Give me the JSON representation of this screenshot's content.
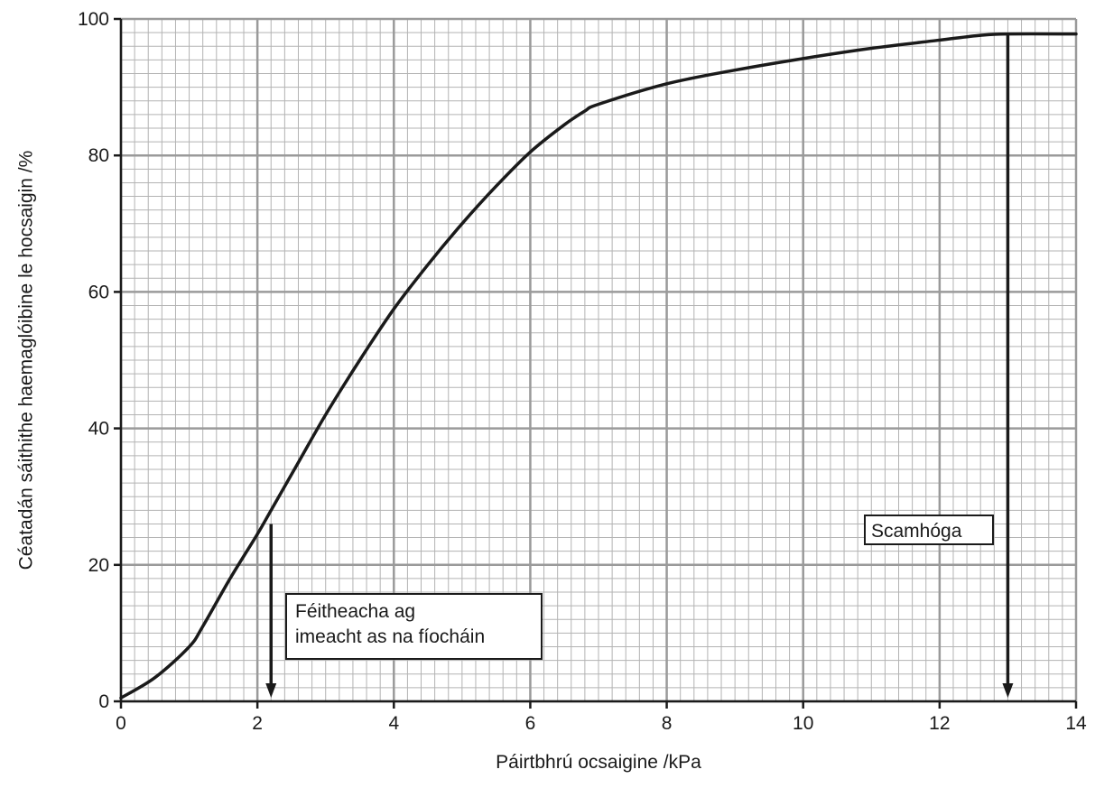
{
  "chart_data": {
    "type": "line",
    "xlabel": "Páirtbhrú ocsaigine /kPa",
    "ylabel": "Céatadán sáithithe haemaglóibine le hocsaigin /%",
    "xlim": [
      0,
      14
    ],
    "ylim": [
      0,
      100
    ],
    "x_ticks": [
      "0",
      "2",
      "4",
      "6",
      "8",
      "10",
      "12",
      "14"
    ],
    "y_ticks": [
      "0",
      "20",
      "40",
      "60",
      "80",
      "100"
    ],
    "grid": true,
    "series": [
      {
        "x": [
          0,
          0.5,
          1.0,
          1.2,
          1.6,
          2.0,
          2.2,
          2.6,
          3.0,
          3.5,
          4.0,
          4.5,
          5.0,
          5.5,
          6.0,
          6.5,
          6.8,
          7.0,
          8.0,
          9.0,
          10.0,
          11.0,
          12.0,
          12.6,
          13.0,
          14.0
        ],
        "y": [
          0.5,
          3.5,
          8.0,
          11.0,
          18.0,
          24.5,
          28.0,
          35.0,
          42.0,
          50.0,
          57.5,
          64.0,
          70.0,
          75.5,
          80.5,
          84.5,
          86.5,
          87.5,
          90.5,
          92.5,
          94.2,
          95.7,
          96.9,
          97.6,
          97.8,
          97.8
        ]
      }
    ],
    "annotations": [
      {
        "text_lines": [
          "Féitheacha ag",
          "imeacht as na fíocháin"
        ],
        "arrow_x": 2.2,
        "arrow_from_y": 26
      },
      {
        "text_lines": [
          "Scamhóga"
        ],
        "arrow_x": 13,
        "arrow_from_y": 97.8
      }
    ]
  }
}
